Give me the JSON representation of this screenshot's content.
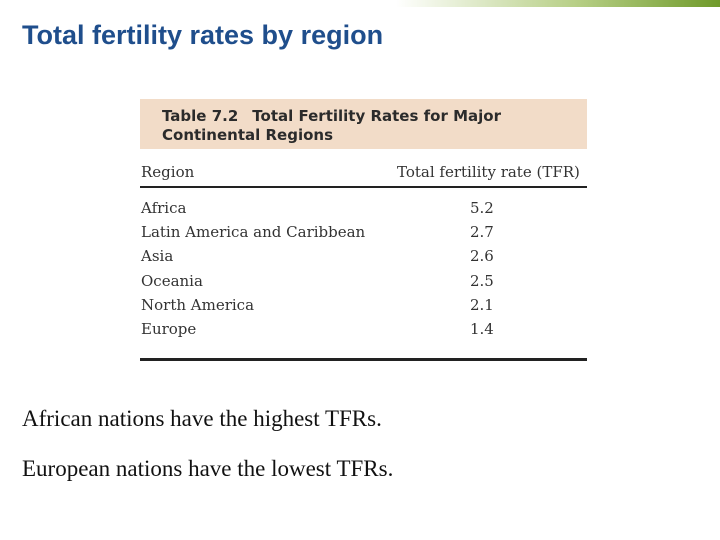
{
  "slide": {
    "title": "Total fertility rates by region"
  },
  "table": {
    "number": "Table 7.2",
    "caption_line1": "Total Fertility Rates for Major",
    "caption_line2": "Continental Regions",
    "headers": {
      "region": "Region",
      "tfr": "Total fertility rate (TFR)"
    },
    "rows": [
      {
        "region": "Africa",
        "tfr": "5.2"
      },
      {
        "region": "Latin America and Caribbean",
        "tfr": "2.7"
      },
      {
        "region": "Asia",
        "tfr": "2.6"
      },
      {
        "region": "Oceania",
        "tfr": "2.5"
      },
      {
        "region": "North America",
        "tfr": "2.1"
      },
      {
        "region": "Europe",
        "tfr": "1.4"
      }
    ]
  },
  "statements": [
    "African nations have the highest TFRs.",
    "European nations have the lowest TFRs."
  ],
  "colors": {
    "title": "#1f4e8c",
    "caption_band": "#f2dcc8",
    "accent_bar": "#6f9a2a"
  }
}
